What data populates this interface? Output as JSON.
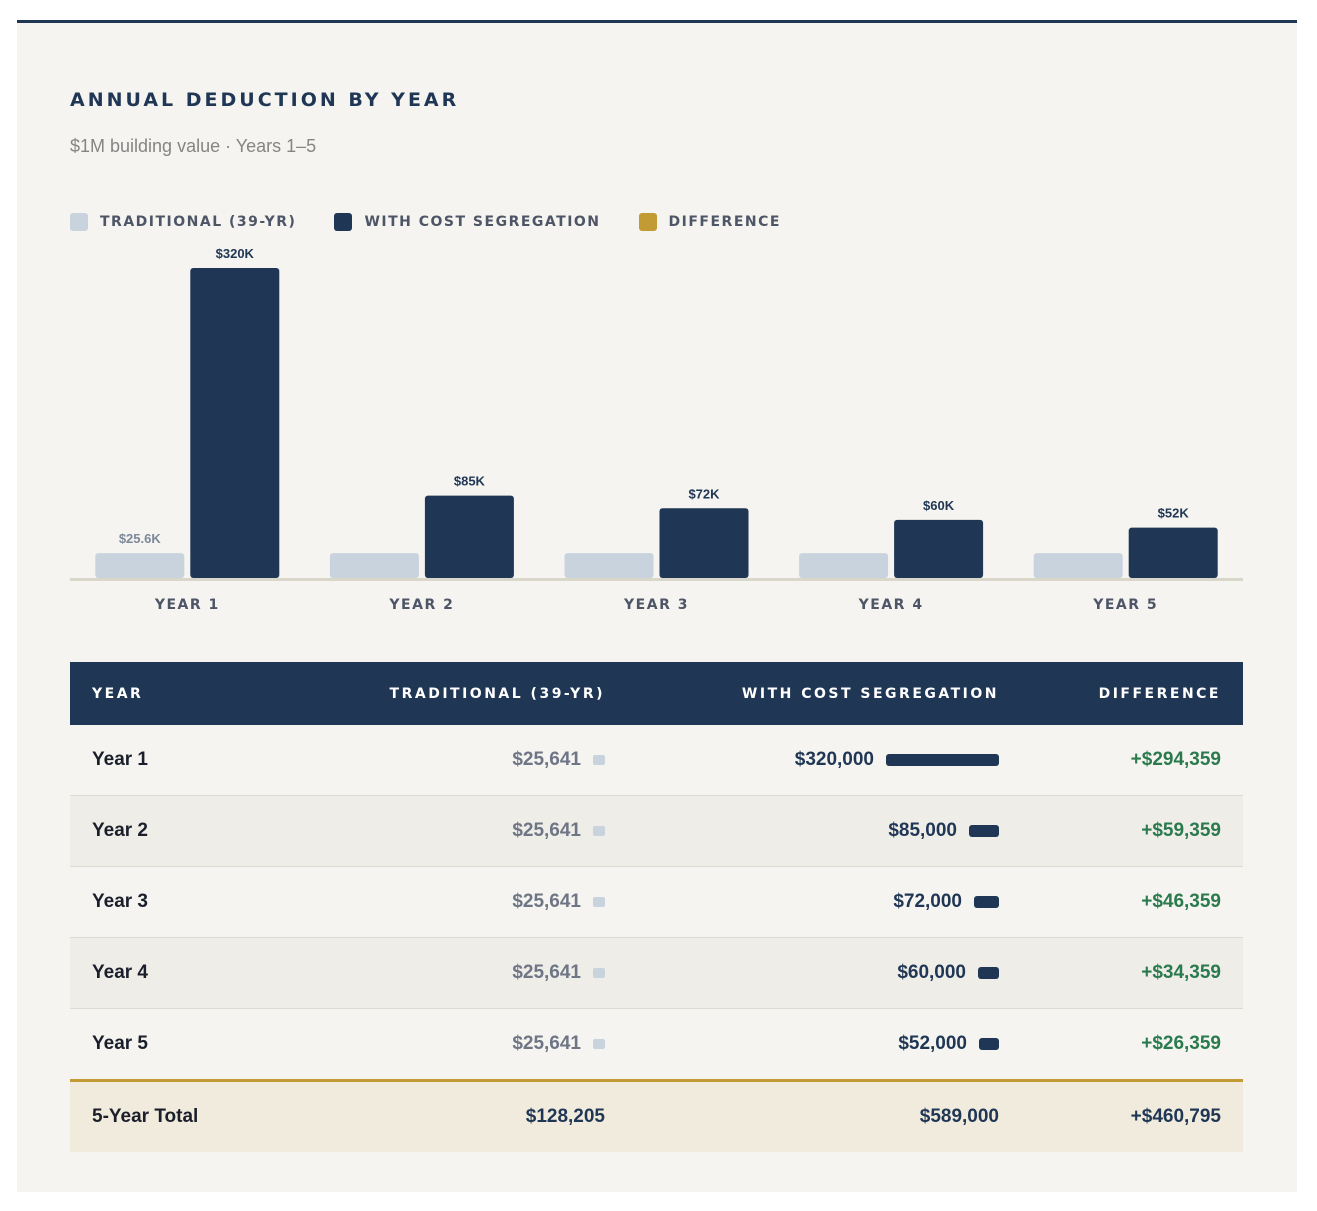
{
  "header": {
    "title": "ANNUAL DEDUCTION BY YEAR",
    "subtitle": "$1M building value · Years 1–5"
  },
  "legend": [
    {
      "label": "TRADITIONAL (39-YR)",
      "color": "#c9d3de"
    },
    {
      "label": "WITH COST SEGREGATION",
      "color": "#1f3654"
    },
    {
      "label": "DIFFERENCE",
      "color": "#c39b35"
    }
  ],
  "chart_data": {
    "type": "bar",
    "title": "ANNUAL DEDUCTION BY YEAR",
    "subtitle": "$1M building value · Years 1–5",
    "categories": [
      "YEAR 1",
      "YEAR 2",
      "YEAR 3",
      "YEAR 4",
      "YEAR 5"
    ],
    "series": [
      {
        "name": "TRADITIONAL (39-YR)",
        "values": [
          25641,
          25641,
          25641,
          25641,
          25641
        ],
        "color": "#c9d3de"
      },
      {
        "name": "WITH COST SEGREGATION",
        "values": [
          320000,
          85000,
          72000,
          60000,
          52000
        ],
        "color": "#1f3654"
      }
    ],
    "data_labels": {
      "traditional": [
        "$25.6K",
        "",
        "",
        "",
        ""
      ],
      "cost_segregation": [
        "$320K",
        "$85K",
        "$72K",
        "$60K",
        "$52K"
      ]
    },
    "ylim": [
      0,
      320000
    ],
    "xlabel": "",
    "ylabel": "",
    "grid": false,
    "legend_position": "top-left"
  },
  "table": {
    "headers": [
      "YEAR",
      "TRADITIONAL (39-YR)",
      "WITH COST SEGREGATION",
      "DIFFERENCE"
    ],
    "rows": [
      {
        "year": "Year 1",
        "traditional": "$25,641",
        "cost_seg": "$320,000",
        "cost_seg_value": 320000,
        "difference": "+$294,359"
      },
      {
        "year": "Year 2",
        "traditional": "$25,641",
        "cost_seg": "$85,000",
        "cost_seg_value": 85000,
        "difference": "+$59,359"
      },
      {
        "year": "Year 3",
        "traditional": "$25,641",
        "cost_seg": "$72,000",
        "cost_seg_value": 72000,
        "difference": "+$46,359"
      },
      {
        "year": "Year 4",
        "traditional": "$25,641",
        "cost_seg": "$60,000",
        "cost_seg_value": 60000,
        "difference": "+$34,359"
      },
      {
        "year": "Year 5",
        "traditional": "$25,641",
        "cost_seg": "$52,000",
        "cost_seg_value": 52000,
        "difference": "+$26,359"
      }
    ],
    "total": {
      "label": "5-Year Total",
      "traditional": "$128,205",
      "cost_seg": "$589,000",
      "difference": "+$460,795"
    }
  }
}
